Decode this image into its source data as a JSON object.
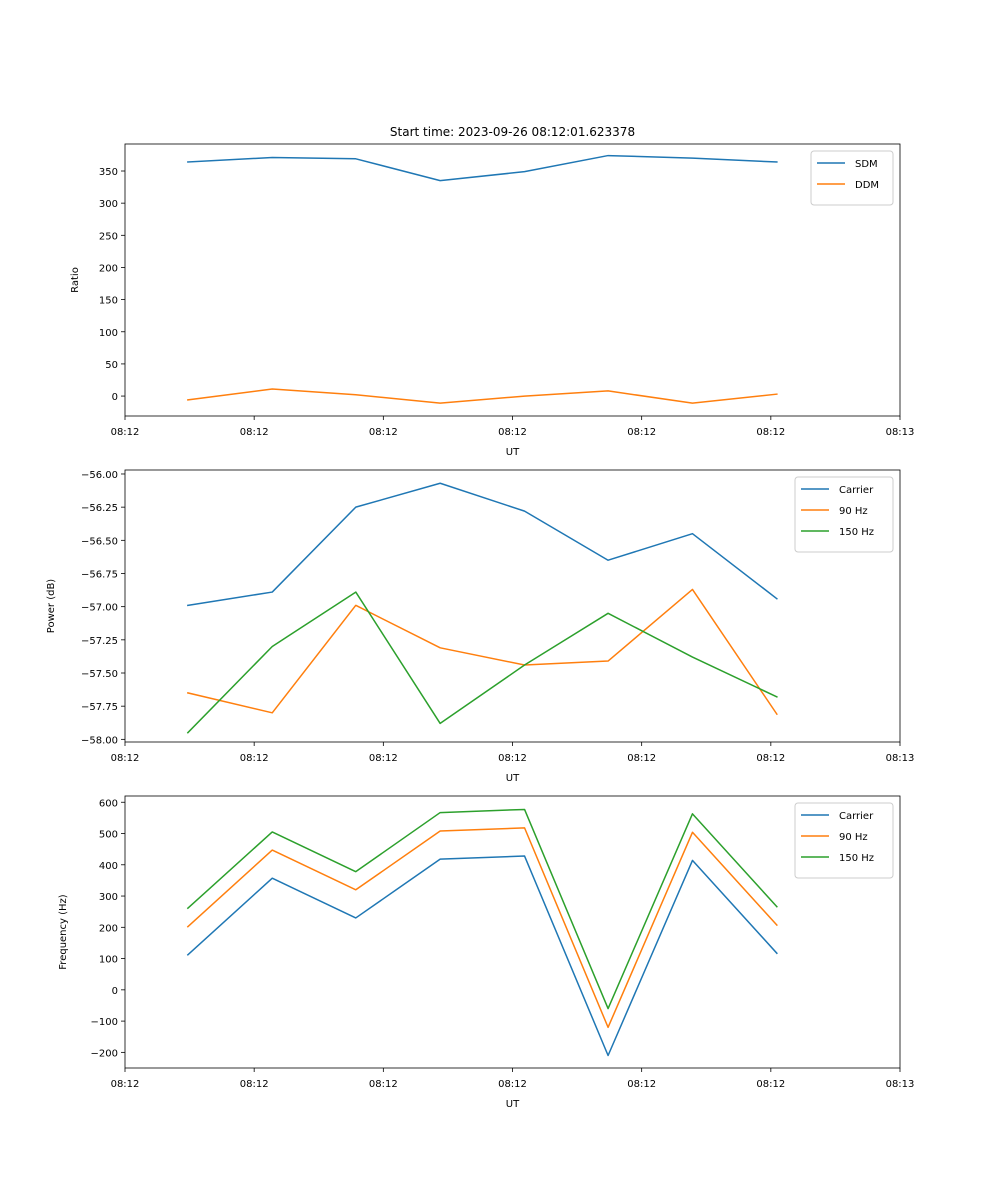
{
  "figure_title": "Start time: 2023-09-26 08:12:01.623378",
  "colors": {
    "blue": "#1f77b4",
    "orange": "#ff7f0e",
    "green": "#2ca02c"
  },
  "chart_data": [
    {
      "type": "line",
      "title": "Start time: 2023-09-26 08:12:01.623378",
      "xlabel": "UT",
      "ylabel": "Ratio",
      "xlim": [
        0,
        9
      ],
      "ylim": [
        -31,
        392
      ],
      "x_ticks": [
        0.0,
        1.5,
        3.0,
        4.5,
        6.0,
        7.5,
        9.0
      ],
      "x_tick_labels": [
        "08:12",
        "08:12",
        "08:12",
        "08:12",
        "08:12",
        "08:12",
        "08:13"
      ],
      "y_ticks": [
        0,
        50,
        100,
        150,
        200,
        250,
        300,
        350
      ],
      "y_tick_labels": [
        "0",
        "50",
        "100",
        "150",
        "200",
        "250",
        "300",
        "350"
      ],
      "x": [
        0.73,
        1.71,
        2.68,
        3.66,
        4.64,
        5.61,
        6.59,
        7.57
      ],
      "series": [
        {
          "name": "SDM",
          "color": "#1f77b4",
          "values": [
            364,
            371,
            369,
            335,
            349,
            374,
            370,
            364
          ]
        },
        {
          "name": "DDM",
          "color": "#ff7f0e",
          "values": [
            -6,
            11,
            2,
            -11,
            0,
            8,
            -11,
            3
          ]
        }
      ],
      "legend": "top-right"
    },
    {
      "type": "line",
      "title": "",
      "xlabel": "UT",
      "ylabel": "Power (dB)",
      "xlim": [
        0,
        9
      ],
      "ylim": [
        -58.02,
        -55.97
      ],
      "x_ticks": [
        0.0,
        1.5,
        3.0,
        4.5,
        6.0,
        7.5,
        9.0
      ],
      "x_tick_labels": [
        "08:12",
        "08:12",
        "08:12",
        "08:12",
        "08:12",
        "08:12",
        "08:13"
      ],
      "y_ticks": [
        -58.0,
        -57.75,
        -57.5,
        -57.25,
        -57.0,
        -56.75,
        -56.5,
        -56.25,
        -56.0
      ],
      "y_tick_labels": [
        "−58.00",
        "−57.75",
        "−57.50",
        "−57.25",
        "−57.00",
        "−56.75",
        "−56.50",
        "−56.25",
        "−56.00"
      ],
      "x": [
        0.73,
        1.71,
        2.68,
        3.66,
        4.64,
        5.61,
        6.59,
        7.57
      ],
      "series": [
        {
          "name": "Carrier",
          "color": "#1f77b4",
          "values": [
            -56.99,
            -56.89,
            -56.25,
            -56.07,
            -56.28,
            -56.65,
            -56.45,
            -56.94
          ]
        },
        {
          "name": "90 Hz",
          "color": "#ff7f0e",
          "values": [
            -57.65,
            -57.8,
            -56.99,
            -57.31,
            -57.44,
            -57.41,
            -56.87,
            -57.81
          ]
        },
        {
          "name": "150 Hz",
          "color": "#2ca02c",
          "values": [
            -57.95,
            -57.3,
            -56.89,
            -57.88,
            -57.44,
            -57.05,
            -57.38,
            -57.68
          ]
        }
      ],
      "legend": "top-right"
    },
    {
      "type": "line",
      "title": "",
      "xlabel": "UT",
      "ylabel": "Frequency (Hz)",
      "xlim": [
        0,
        9
      ],
      "ylim": [
        -250,
        620
      ],
      "x_ticks": [
        0.0,
        1.5,
        3.0,
        4.5,
        6.0,
        7.5,
        9.0
      ],
      "x_tick_labels": [
        "08:12",
        "08:12",
        "08:12",
        "08:12",
        "08:12",
        "08:12",
        "08:13"
      ],
      "y_ticks": [
        -200,
        -100,
        0,
        100,
        200,
        300,
        400,
        500,
        600
      ],
      "y_tick_labels": [
        "−200",
        "−100",
        "0",
        "100",
        "200",
        "300",
        "400",
        "500",
        "600"
      ],
      "x": [
        0.73,
        1.71,
        2.68,
        3.66,
        4.64,
        5.61,
        6.59,
        7.57
      ],
      "series": [
        {
          "name": "Carrier",
          "color": "#1f77b4",
          "values": [
            112,
            357,
            230,
            418,
            428,
            -210,
            414,
            117
          ]
        },
        {
          "name": "90 Hz",
          "color": "#ff7f0e",
          "values": [
            202,
            447,
            320,
            508,
            518,
            -120,
            504,
            207
          ]
        },
        {
          "name": "150 Hz",
          "color": "#2ca02c",
          "values": [
            261,
            505,
            378,
            567,
            577,
            -60,
            563,
            266
          ]
        }
      ],
      "legend": "top-right"
    }
  ]
}
